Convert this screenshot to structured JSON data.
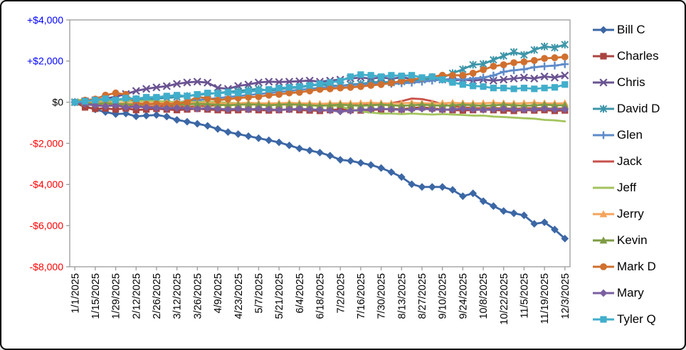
{
  "window": {
    "background": "#FFFFFF",
    "border_color": "#000000"
  },
  "chart_data": {
    "type": "line",
    "title": "",
    "xlabel": "",
    "ylabel": "",
    "grid": false,
    "legend_position": "right",
    "axis_color": "#9B9B9B",
    "y_axis": {
      "min": -8000,
      "max": 4000,
      "tick_step": 2000,
      "ticks": [
        {
          "value": 4000,
          "label": "+$4,000",
          "color": "#0000FF"
        },
        {
          "value": 2000,
          "label": "+$2,000",
          "color": "#0000FF"
        },
        {
          "value": 0,
          "label": "$0",
          "color": "#000000"
        },
        {
          "value": -2000,
          "label": "-$2,000",
          "color": "#FF0000"
        },
        {
          "value": -4000,
          "label": "-$4,000",
          "color": "#FF0000"
        },
        {
          "value": -6000,
          "label": "-$6,000",
          "color": "#FF0000"
        },
        {
          "value": -8000,
          "label": "-$8,000",
          "color": "#FF0000"
        }
      ]
    },
    "x_label_interval": 2,
    "x": [
      "1/1/2025",
      "1/8/2025",
      "1/15/2025",
      "1/22/2025",
      "1/29/2025",
      "2/5/2025",
      "2/12/2025",
      "2/19/2025",
      "2/26/2025",
      "3/5/2025",
      "3/12/2025",
      "3/19/2025",
      "3/26/2025",
      "4/2/2025",
      "4/9/2025",
      "4/16/2025",
      "4/23/2025",
      "4/30/2025",
      "5/7/2025",
      "5/14/2025",
      "5/21/2025",
      "5/28/2025",
      "6/4/2025",
      "6/11/2025",
      "6/18/2025",
      "6/25/2025",
      "7/2/2025",
      "7/9/2025",
      "7/16/2025",
      "7/23/2025",
      "7/30/2025",
      "8/6/2025",
      "8/13/2025",
      "8/20/2025",
      "8/27/2025",
      "9/3/2025",
      "9/10/2025",
      "9/17/2025",
      "9/24/2025",
      "10/1/2025",
      "10/8/2025",
      "10/15/2025",
      "10/22/2025",
      "10/29/2025",
      "11/5/2025",
      "11/12/2025",
      "11/19/2025",
      "11/26/2025",
      "12/3/2025"
    ],
    "series": [
      {
        "name": "Bill C",
        "color": "#3C67A5",
        "marker": "diamond",
        "values": [
          0,
          -200,
          -350,
          -480,
          -580,
          -550,
          -690,
          -650,
          -620,
          -700,
          -860,
          -950,
          -1050,
          -1150,
          -1300,
          -1450,
          -1550,
          -1650,
          -1750,
          -1850,
          -1950,
          -2100,
          -2250,
          -2350,
          -2450,
          -2600,
          -2800,
          -2850,
          -2950,
          -3050,
          -3200,
          -3400,
          -3640,
          -3990,
          -4120,
          -4120,
          -4120,
          -4260,
          -4570,
          -4430,
          -4810,
          -5050,
          -5290,
          -5400,
          -5500,
          -5910,
          -5840,
          -6190,
          -6630
        ]
      },
      {
        "name": "Charles",
        "color": "#A94441",
        "marker": "square",
        "values": [
          0,
          -250,
          -320,
          -300,
          -350,
          -300,
          -380,
          -350,
          -320,
          -350,
          -380,
          -350,
          -320,
          -350,
          -380,
          -400,
          -380,
          -350,
          -380,
          -400,
          -380,
          -350,
          -380,
          -400,
          -420,
          -380,
          -350,
          -380,
          -400,
          -380,
          -350,
          -320,
          -350,
          -280,
          -250,
          -300,
          -350,
          -380,
          -400,
          -380,
          -350,
          -380,
          -400,
          -420,
          -380,
          -400,
          -380,
          -420,
          -400
        ]
      },
      {
        "name": "Chris",
        "color": "#6A5391",
        "marker": "x",
        "values": [
          0,
          50,
          100,
          180,
          270,
          400,
          550,
          650,
          720,
          780,
          890,
          960,
          1000,
          950,
          700,
          650,
          790,
          860,
          960,
          1000,
          980,
          1000,
          1020,
          1050,
          1000,
          1050,
          1100,
          1150,
          1200,
          1150,
          1200,
          1150,
          1200,
          1150,
          1100,
          1150,
          1100,
          1050,
          1100,
          1050,
          1100,
          1050,
          1100,
          1150,
          1200,
          1150,
          1250,
          1200,
          1300
        ]
      },
      {
        "name": "David D",
        "color": "#3D95A8",
        "marker": "asterisk",
        "values": [
          0,
          30,
          80,
          50,
          100,
          80,
          150,
          120,
          180,
          200,
          250,
          300,
          350,
          400,
          450,
          500,
          550,
          600,
          650,
          550,
          620,
          690,
          720,
          790,
          860,
          820,
          790,
          860,
          900,
          950,
          1000,
          950,
          1000,
          1050,
          1100,
          1150,
          1200,
          1410,
          1600,
          1820,
          1860,
          2060,
          2250,
          2440,
          2300,
          2540,
          2710,
          2650,
          2800
        ]
      },
      {
        "name": "Glen",
        "color": "#5E8BC9",
        "marker": "plus",
        "values": [
          0,
          -50,
          -100,
          -80,
          -120,
          -100,
          -150,
          -100,
          -80,
          -50,
          0,
          50,
          100,
          150,
          200,
          250,
          300,
          350,
          400,
          450,
          500,
          550,
          600,
          650,
          700,
          750,
          790,
          830,
          860,
          890,
          920,
          890,
          920,
          950,
          1000,
          1050,
          1100,
          1130,
          1100,
          1150,
          1200,
          1300,
          1480,
          1550,
          1600,
          1700,
          1750,
          1780,
          1850
        ]
      },
      {
        "name": "Jack",
        "color": "#C8504B",
        "marker": "none",
        "values": [
          0,
          -100,
          -150,
          -120,
          -150,
          -180,
          -200,
          -220,
          -200,
          -180,
          -200,
          -220,
          -200,
          -180,
          -150,
          -120,
          -100,
          -120,
          -100,
          -120,
          -100,
          -120,
          -100,
          -120,
          -100,
          -120,
          -100,
          -80,
          -100,
          -80,
          -100,
          -50,
          50,
          180,
          150,
          50,
          -100,
          -200,
          -250,
          -280,
          -300,
          -280,
          -300,
          -320,
          -300,
          -280,
          -300,
          -320,
          -300
        ]
      },
      {
        "name": "Jeff",
        "color": "#A3C35C",
        "marker": "none",
        "values": [
          100,
          120,
          100,
          80,
          100,
          80,
          50,
          80,
          50,
          30,
          0,
          30,
          0,
          30,
          0,
          -30,
          -50,
          -30,
          -50,
          -80,
          -50,
          -80,
          -50,
          -80,
          -100,
          -150,
          -200,
          -350,
          -450,
          -500,
          -550,
          -550,
          -580,
          -550,
          -580,
          -600,
          -580,
          -600,
          -620,
          -650,
          -650,
          -700,
          -720,
          -750,
          -780,
          -800,
          -860,
          -880,
          -930
        ]
      },
      {
        "name": "Jerry",
        "color": "#F5A45C",
        "marker": "triangle",
        "values": [
          0,
          30,
          -30,
          0,
          -50,
          -30,
          -60,
          -30,
          -50,
          -30,
          -60,
          -30,
          -50,
          -30,
          -60,
          -80,
          -60,
          -30,
          -50,
          -60,
          -50,
          -30,
          -50,
          -60,
          -80,
          -60,
          -50,
          -60,
          -50,
          -30,
          -50,
          -60,
          -50,
          -30,
          -50,
          -60,
          -50,
          -30,
          -50,
          -60,
          -50,
          -30,
          -50,
          -60,
          -50,
          -30,
          -50,
          -60,
          -50
        ]
      },
      {
        "name": "Kevin",
        "color": "#7E9B44",
        "marker": "triangle",
        "values": [
          0,
          -30,
          -80,
          -50,
          -80,
          -100,
          -120,
          -100,
          -80,
          -100,
          -120,
          -100,
          -80,
          -100,
          -120,
          -150,
          -120,
          -100,
          -120,
          -150,
          -120,
          -100,
          -120,
          -150,
          -170,
          -150,
          -120,
          -150,
          -170,
          -150,
          -120,
          -150,
          -170,
          -150,
          -120,
          -150,
          -170,
          -150,
          -120,
          -150,
          -170,
          -150,
          -120,
          -150,
          -170,
          -150,
          -120,
          -150,
          -150
        ]
      },
      {
        "name": "Mark D",
        "color": "#D0702F",
        "marker": "circle",
        "values": [
          0,
          100,
          150,
          340,
          450,
          380,
          -50,
          -100,
          -80,
          -100,
          -60,
          0,
          270,
          180,
          100,
          150,
          200,
          240,
          270,
          340,
          380,
          450,
          480,
          550,
          620,
          650,
          690,
          720,
          760,
          820,
          860,
          930,
          1030,
          1100,
          1170,
          1240,
          1310,
          1310,
          1310,
          1410,
          1580,
          1750,
          1820,
          1920,
          1960,
          2030,
          2130,
          2160,
          2200
        ]
      },
      {
        "name": "Mary",
        "color": "#7A5FA0",
        "marker": "diamond",
        "values": [
          0,
          -80,
          -150,
          -200,
          -150,
          -250,
          -220,
          -250,
          -280,
          -300,
          -280,
          -300,
          -320,
          -300,
          -320,
          -350,
          -320,
          -350,
          -320,
          -350,
          -370,
          -350,
          -320,
          -350,
          -370,
          -400,
          -450,
          -420,
          -370,
          -350,
          -320,
          -350,
          -370,
          -350,
          -320,
          -350,
          -370,
          -350,
          -320,
          -350,
          -370,
          -350,
          -320,
          -350,
          -370,
          -350,
          -320,
          -350,
          -350
        ]
      },
      {
        "name": "Tyler Q",
        "color": "#41AECB",
        "marker": "square",
        "values": [
          0,
          50,
          100,
          170,
          100,
          200,
          170,
          240,
          240,
          300,
          340,
          300,
          380,
          450,
          420,
          480,
          450,
          520,
          550,
          620,
          690,
          720,
          760,
          820,
          890,
          960,
          1030,
          1240,
          1340,
          1310,
          1240,
          1310,
          1280,
          1310,
          1200,
          1240,
          1100,
          960,
          860,
          790,
          760,
          690,
          690,
          650,
          690,
          650,
          690,
          720,
          860
        ]
      }
    ]
  }
}
